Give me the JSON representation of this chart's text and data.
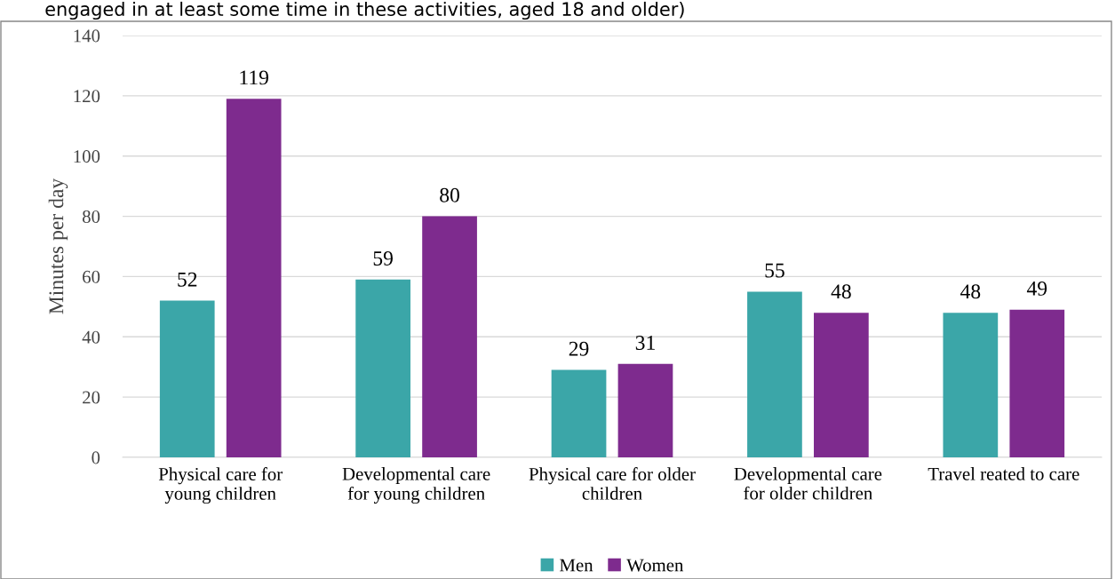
{
  "chart_data": {
    "type": "bar",
    "title": "engaged in at least some time in these activities, aged 18 and older)",
    "ylabel": "Minutes per day",
    "categories": [
      "Physical care for\nyoung children",
      "Developmental care\nfor young children",
      "Physical care for older\nchildren",
      "Developmental care\nfor older children",
      "Travel reated to care"
    ],
    "series": [
      {
        "name": "Men",
        "color": "#3ba6a8",
        "values": [
          52,
          59,
          29,
          55,
          48
        ]
      },
      {
        "name": "Women",
        "color": "#7e2b8e",
        "values": [
          119,
          80,
          31,
          48,
          49
        ]
      }
    ],
    "ylim": [
      0,
      140
    ],
    "yticks": [
      0,
      20,
      40,
      60,
      80,
      100,
      120,
      140
    ],
    "grid": "y",
    "legend": "bottom",
    "data_labels": true
  }
}
